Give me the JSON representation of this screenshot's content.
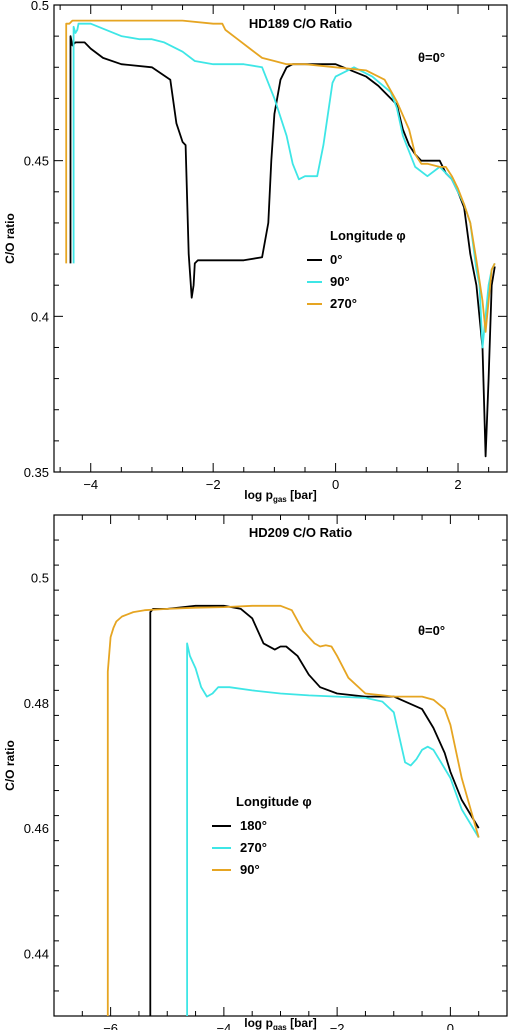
{
  "chart_data": [
    {
      "type": "line",
      "title": "HD189 C/O Ratio",
      "annotation": "θ=0°",
      "xlabel": "log p",
      "xlabel_sub": "gas",
      "xlabel_unit": " [bar]",
      "ylabel": "C/O ratio",
      "xlim": [
        -4.6,
        2.8
      ],
      "ylim": [
        0.35,
        0.5
      ],
      "xticks": [
        -4,
        -2,
        0,
        2
      ],
      "xtick_labels": [
        "−4",
        "−2",
        "0",
        "2"
      ],
      "yticks": [
        0.35,
        0.4,
        0.45,
        0.5
      ],
      "ytick_labels": [
        "0.35",
        "0.4",
        "0.45",
        "0.5"
      ],
      "legend_title": "Longitude φ",
      "legend_position": "center-right",
      "series": [
        {
          "name": "0°",
          "color": "#000000",
          "x": [
            -4.33,
            -4.33,
            -4.3,
            -4.25,
            -4.1,
            -4.0,
            -3.8,
            -3.5,
            -3.0,
            -2.7,
            -2.6,
            -2.5,
            -2.45,
            -2.4,
            -2.35,
            -2.32,
            -2.3,
            -2.25,
            -2.2,
            -2.0,
            -1.5,
            -1.2,
            -1.1,
            -1.05,
            -1.0,
            -0.9,
            -0.8,
            -0.7,
            -0.5,
            0.0,
            0.5,
            0.7,
            0.9,
            1.0,
            1.1,
            1.2,
            1.3,
            1.4,
            1.5,
            1.7,
            1.8,
            1.9,
            2.0,
            2.1,
            2.2,
            2.3,
            2.4,
            2.45,
            2.5,
            2.55,
            2.6
          ],
          "y": [
            0.417,
            0.49,
            0.487,
            0.488,
            0.488,
            0.486,
            0.483,
            0.481,
            0.48,
            0.476,
            0.462,
            0.456,
            0.455,
            0.42,
            0.406,
            0.41,
            0.417,
            0.418,
            0.418,
            0.418,
            0.418,
            0.419,
            0.43,
            0.45,
            0.465,
            0.476,
            0.48,
            0.481,
            0.481,
            0.481,
            0.477,
            0.474,
            0.47,
            0.468,
            0.46,
            0.455,
            0.452,
            0.45,
            0.45,
            0.45,
            0.446,
            0.444,
            0.44,
            0.435,
            0.42,
            0.41,
            0.39,
            0.355,
            0.38,
            0.41,
            0.416
          ]
        },
        {
          "name": "90°",
          "color": "#3ee6e6",
          "x": [
            -4.28,
            -4.28,
            -4.25,
            -4.22,
            -4.2,
            -4.0,
            -3.5,
            -3.2,
            -3.0,
            -2.8,
            -2.5,
            -2.3,
            -2.0,
            -1.5,
            -1.2,
            -1.0,
            -0.8,
            -0.7,
            -0.6,
            -0.5,
            -0.3,
            -0.2,
            -0.05,
            0.0,
            0.3,
            0.6,
            0.9,
            1.0,
            1.1,
            1.3,
            1.5,
            1.7,
            1.9,
            2.1,
            2.2,
            2.3,
            2.35,
            2.4,
            2.5,
            2.55,
            2.6
          ],
          "y": [
            0.417,
            0.493,
            0.491,
            0.492,
            0.494,
            0.494,
            0.49,
            0.489,
            0.489,
            0.488,
            0.485,
            0.482,
            0.481,
            0.481,
            0.48,
            0.47,
            0.458,
            0.449,
            0.444,
            0.445,
            0.445,
            0.455,
            0.475,
            0.477,
            0.48,
            0.477,
            0.472,
            0.467,
            0.458,
            0.448,
            0.445,
            0.448,
            0.444,
            0.436,
            0.43,
            0.415,
            0.41,
            0.39,
            0.41,
            0.415,
            0.417
          ]
        },
        {
          "name": "270°",
          "color": "#e6a522",
          "x": [
            -4.4,
            -4.4,
            -4.35,
            -4.3,
            -4.0,
            -3.5,
            -3.0,
            -2.5,
            -2.0,
            -1.85,
            -1.8,
            -1.6,
            -1.4,
            -1.2,
            -1.0,
            -0.8,
            -0.5,
            0.0,
            0.5,
            0.8,
            1.0,
            1.2,
            1.3,
            1.4,
            1.5,
            1.7,
            1.8,
            1.9,
            2.0,
            2.1,
            2.2,
            2.3,
            2.4,
            2.45,
            2.5,
            2.55,
            2.6
          ],
          "y": [
            0.417,
            0.494,
            0.494,
            0.495,
            0.495,
            0.495,
            0.495,
            0.495,
            0.494,
            0.494,
            0.492,
            0.489,
            0.486,
            0.483,
            0.482,
            0.481,
            0.481,
            0.48,
            0.479,
            0.476,
            0.469,
            0.46,
            0.452,
            0.449,
            0.449,
            0.448,
            0.448,
            0.445,
            0.441,
            0.436,
            0.43,
            0.418,
            0.405,
            0.395,
            0.405,
            0.415,
            0.417
          ]
        }
      ]
    },
    {
      "type": "line",
      "title": "HD209 C/O Ratio",
      "annotation": "θ=0°",
      "xlabel": "log p",
      "xlabel_sub": "gas",
      "xlabel_unit": " [bar]",
      "ylabel": "C/O ratio",
      "xlim": [
        -7.0,
        1.0
      ],
      "ylim": [
        0.43,
        0.51
      ],
      "xticks": [
        -6,
        -4,
        -2,
        0
      ],
      "xtick_labels": [
        "−6",
        "−4",
        "−2",
        "0"
      ],
      "yticks": [
        0.44,
        0.46,
        0.48,
        0.5
      ],
      "ytick_labels": [
        "0.44",
        "0.46",
        "0.48",
        "0.5"
      ],
      "legend_title": "Longitude φ",
      "legend_position": "lower-center",
      "series": [
        {
          "name": "180°",
          "color": "#000000",
          "x": [
            -5.3,
            -5.3,
            -5.25,
            -5.0,
            -4.5,
            -4.0,
            -3.7,
            -3.5,
            -3.3,
            -3.1,
            -3.0,
            -2.9,
            -2.7,
            -2.5,
            -2.3,
            -2.0,
            -1.5,
            -1.0,
            -0.5,
            -0.3,
            -0.1,
            0.0,
            0.2,
            0.5
          ],
          "y": [
            0.43,
            0.4945,
            0.495,
            0.495,
            0.4955,
            0.4955,
            0.495,
            0.4935,
            0.4895,
            0.4885,
            0.489,
            0.489,
            0.4875,
            0.4845,
            0.4825,
            0.4815,
            0.481,
            0.481,
            0.479,
            0.476,
            0.472,
            0.469,
            0.4645,
            0.46
          ]
        },
        {
          "name": "270°",
          "color": "#3ee6e6",
          "x": [
            -4.65,
            -4.65,
            -4.6,
            -4.5,
            -4.4,
            -4.3,
            -4.2,
            -4.1,
            -4.0,
            -3.9,
            -3.5,
            -3.0,
            -2.5,
            -2.0,
            -1.5,
            -1.2,
            -1.0,
            -0.9,
            -0.8,
            -0.7,
            -0.6,
            -0.5,
            -0.4,
            -0.3,
            -0.2,
            0.0,
            0.2,
            0.5
          ],
          "y": [
            0.43,
            0.4895,
            0.4875,
            0.4855,
            0.4825,
            0.481,
            0.4815,
            0.4825,
            0.4825,
            0.4825,
            0.482,
            0.4815,
            0.4812,
            0.481,
            0.4808,
            0.4802,
            0.4785,
            0.4745,
            0.4705,
            0.47,
            0.471,
            0.4725,
            0.473,
            0.4725,
            0.471,
            0.468,
            0.463,
            0.4585
          ]
        },
        {
          "name": "90°",
          "color": "#e6a522",
          "x": [
            -6.05,
            -6.05,
            -6.0,
            -5.95,
            -5.9,
            -5.8,
            -5.6,
            -5.4,
            -5.0,
            -4.5,
            -4.0,
            -3.5,
            -3.0,
            -2.8,
            -2.6,
            -2.4,
            -2.3,
            -2.2,
            -2.1,
            -2.0,
            -1.8,
            -1.5,
            -1.0,
            -0.5,
            -0.3,
            -0.1,
            0.0,
            0.2,
            0.5
          ],
          "y": [
            0.43,
            0.485,
            0.4905,
            0.492,
            0.493,
            0.4938,
            0.4945,
            0.4948,
            0.495,
            0.4952,
            0.4953,
            0.4955,
            0.4955,
            0.4948,
            0.4915,
            0.4895,
            0.489,
            0.4892,
            0.489,
            0.4875,
            0.484,
            0.4815,
            0.481,
            0.481,
            0.4805,
            0.479,
            0.4765,
            0.468,
            0.4585
          ]
        }
      ]
    }
  ]
}
